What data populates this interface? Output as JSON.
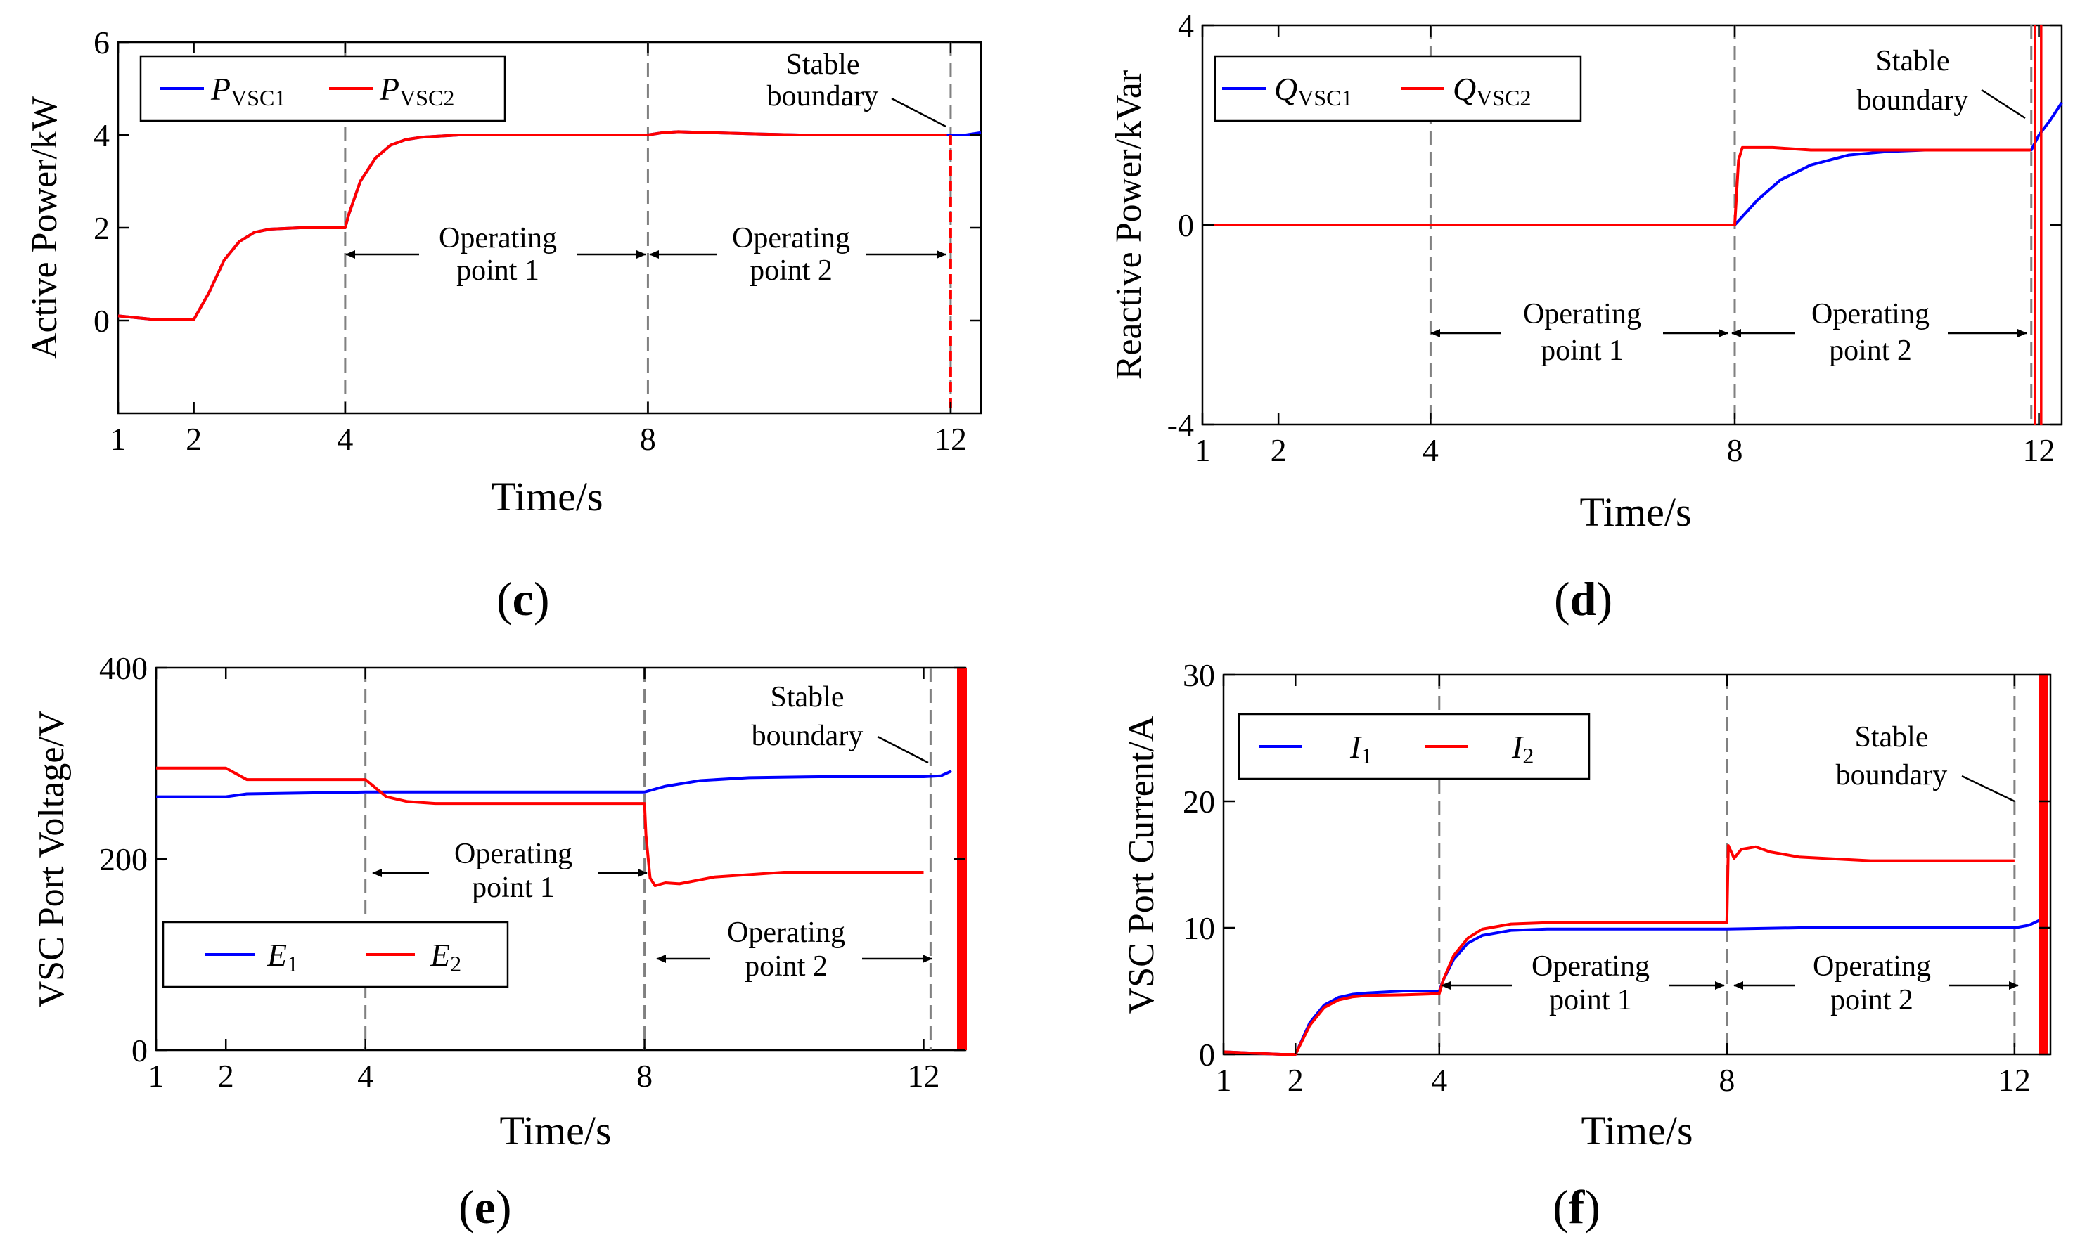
{
  "chart_data": [
    {
      "panel": "(c)",
      "panel_letter": "c",
      "type": "line",
      "ylabel": "Active Power/kW",
      "xlabel": "Time/s",
      "xlim": [
        1,
        12.4
      ],
      "ylim": [
        -2,
        6
      ],
      "x_ticks": [
        "1",
        "2",
        "4",
        "8",
        "12"
      ],
      "x_tick_values": [
        1,
        2,
        4,
        8,
        12
      ],
      "y_ticks": [
        "0",
        "2",
        "4",
        "6"
      ],
      "y_tick_values": [
        0,
        2,
        4,
        6
      ],
      "legend": {
        "placement": "top-left",
        "entries": [
          {
            "main": "P",
            "sub": "VSC1",
            "color": "#0000ff"
          },
          {
            "main": "P",
            "sub": "VSC2",
            "color": "#ff0000"
          }
        ]
      },
      "dashed_lines_x": [
        4,
        8,
        12
      ],
      "annotations": {
        "stable_line1": "Stable",
        "stable_line2": "boundary",
        "op1_line1": "Operating",
        "op1_line2": "point 1",
        "op2_line1": "Operating",
        "op2_line2": "point 2"
      },
      "series": [
        {
          "color": "#0000ff",
          "x": [
            1,
            1.5,
            2,
            2.2,
            2.4,
            2.6,
            2.8,
            3.0,
            3.4,
            4.0,
            4.05,
            4.2,
            4.4,
            4.6,
            4.8,
            5.0,
            5.5,
            6.0,
            8.0,
            8.2,
            8.4,
            8.8,
            9.5,
            10,
            12.0,
            12.2,
            12.4
          ],
          "y": [
            0.1,
            0.02,
            0.02,
            0.6,
            1.3,
            1.7,
            1.9,
            1.97,
            2.0,
            2.0,
            2.3,
            3.0,
            3.5,
            3.78,
            3.9,
            3.95,
            4.0,
            4.0,
            4.0,
            4.05,
            4.07,
            4.05,
            4.02,
            4.0,
            4.0,
            4.0,
            4.05
          ]
        },
        {
          "color": "#ff0000",
          "x": [
            1,
            1.5,
            2,
            2.2,
            2.4,
            2.6,
            2.8,
            3.0,
            3.4,
            4.0,
            4.05,
            4.2,
            4.4,
            4.6,
            4.8,
            5.0,
            5.5,
            6.0,
            8.0,
            8.2,
            8.4,
            8.8,
            9.5,
            10,
            11.95
          ],
          "y": [
            0.1,
            0.02,
            0.02,
            0.6,
            1.3,
            1.7,
            1.9,
            1.97,
            2.0,
            2.0,
            2.3,
            3.0,
            3.5,
            3.78,
            3.9,
            3.95,
            4.0,
            4.0,
            4.0,
            4.05,
            4.07,
            4.05,
            4.02,
            4.0,
            4.0
          ]
        },
        {
          "color": "#ff0000",
          "x": [
            12,
            12
          ],
          "y": [
            4.0,
            -2.0
          ],
          "dash": true
        }
      ]
    },
    {
      "panel": "(d)",
      "panel_letter": "d",
      "type": "line",
      "ylabel": "Reactive Power/kVar",
      "xlabel": "Time/s",
      "xlim": [
        1,
        12.3
      ],
      "ylim": [
        -4,
        4
      ],
      "x_ticks": [
        "1",
        "2",
        "4",
        "8",
        "12"
      ],
      "x_tick_values": [
        1,
        2,
        4,
        8,
        12
      ],
      "y_ticks": [
        "-4",
        "0",
        "4"
      ],
      "y_tick_values": [
        -4,
        0,
        4
      ],
      "legend": {
        "placement": "top-left",
        "entries": [
          {
            "main": "Q",
            "sub": "VSC1",
            "color": "#0000ff"
          },
          {
            "main": "Q",
            "sub": "VSC2",
            "color": "#ff0000"
          }
        ]
      },
      "dashed_lines_x": [
        4,
        8,
        11.9
      ],
      "annotations": {
        "stable_line1": "Stable",
        "stable_line2": "boundary",
        "op1_line1": "Operating",
        "op1_line2": "point 1",
        "op2_line1": "Operating",
        "op2_line2": "point 2"
      },
      "series": [
        {
          "color": "#0000ff",
          "x": [
            1,
            8.0,
            8.3,
            8.6,
            9.0,
            9.5,
            10.0,
            10.5,
            11.0,
            11.9,
            12.0,
            12.15,
            12.3
          ],
          "y": [
            0,
            0,
            0.5,
            0.9,
            1.2,
            1.4,
            1.47,
            1.5,
            1.5,
            1.5,
            1.8,
            2.1,
            2.45
          ]
        },
        {
          "color": "#ff0000",
          "x": [
            1,
            8.0,
            8.05,
            8.1,
            8.5,
            9.0,
            10.0,
            11.9
          ],
          "y": [
            0,
            0,
            1.3,
            1.55,
            1.55,
            1.5,
            1.5,
            1.5
          ]
        },
        {
          "color": "#ff0000",
          "x": [
            11.95,
            11.95
          ],
          "y": [
            4.0,
            -4.0
          ],
          "width": 3.5
        },
        {
          "color": "#ff0000",
          "x": [
            12.03,
            12.03
          ],
          "y": [
            4.0,
            -4.0
          ],
          "width": 3.5
        }
      ]
    },
    {
      "panel": "(e)",
      "panel_letter": "e",
      "type": "line",
      "ylabel": "VSC Port Voltage/V",
      "xlabel": "Time/s",
      "xlim": [
        1,
        12.6
      ],
      "ylim": [
        0,
        400
      ],
      "x_ticks": [
        "1",
        "2",
        "4",
        "8",
        "12"
      ],
      "x_tick_values": [
        1,
        2,
        4,
        8,
        12
      ],
      "y_ticks": [
        "0",
        "200",
        "400"
      ],
      "y_tick_values": [
        0,
        200,
        400
      ],
      "legend": {
        "placement": "bottom-left",
        "entries": [
          {
            "main": "E",
            "sub": "1",
            "color": "#0000ff"
          },
          {
            "main": "E",
            "sub": "2",
            "color": "#ff0000"
          }
        ]
      },
      "dashed_lines_x": [
        4,
        8,
        12.1
      ],
      "annotations": {
        "stable_line1": "Stable",
        "stable_line2": "boundary",
        "op1_line1": "Operating",
        "op1_line2": "point 1",
        "op2_line1": "Operating",
        "op2_line2": "point 2"
      },
      "series": [
        {
          "color": "#0000ff",
          "x": [
            1,
            2.0,
            2.3,
            4.0,
            8.0,
            8.3,
            8.8,
            9.5,
            10.5,
            12.0,
            12.25,
            12.4
          ],
          "y": [
            265,
            265,
            268,
            270,
            270,
            276,
            282,
            285,
            286,
            286,
            287,
            292
          ]
        },
        {
          "color": "#ff0000",
          "x": [
            1,
            2.0,
            2.3,
            4.0,
            4.3,
            4.6,
            5.0,
            8.0,
            8.02,
            8.08,
            8.15,
            8.3,
            8.5,
            9.0,
            10.0,
            12.0
          ],
          "y": [
            295,
            295,
            283,
            283,
            265,
            260,
            258,
            258,
            225,
            180,
            172,
            175,
            174,
            181,
            186,
            186
          ]
        },
        {
          "color": "#ff0000",
          "x": [
            12.55,
            12.55
          ],
          "y": [
            400,
            0
          ],
          "width": 14
        }
      ]
    },
    {
      "panel": "(f)",
      "panel_letter": "f",
      "type": "line",
      "ylabel": "VSC Port Current/A",
      "xlabel": "Time/s",
      "xlim": [
        1,
        12.5
      ],
      "ylim": [
        0,
        30
      ],
      "x_ticks": [
        "1",
        "2",
        "4",
        "8",
        "12"
      ],
      "x_tick_values": [
        1,
        2,
        4,
        8,
        12
      ],
      "y_ticks": [
        "0",
        "10",
        "20",
        "30"
      ],
      "y_tick_values": [
        0,
        10,
        20,
        30
      ],
      "legend": {
        "placement": "top-left",
        "entries": [
          {
            "main": "I",
            "sub": "1",
            "color": "#0000ff"
          },
          {
            "main": "I",
            "sub": "2",
            "color": "#ff0000"
          }
        ]
      },
      "dashed_lines_x": [
        4,
        8,
        12
      ],
      "annotations": {
        "stable_line1": "Stable",
        "stable_line2": "boundary",
        "op1_line1": "Operating",
        "op1_line2": "point 1",
        "op2_line1": "Operating",
        "op2_line2": "point 2"
      },
      "series": [
        {
          "color": "#0000ff",
          "x": [
            1,
            1.8,
            2.0,
            2.2,
            2.4,
            2.6,
            2.8,
            3.0,
            3.5,
            4.0,
            4.05,
            4.2,
            4.4,
            4.6,
            5.0,
            5.5,
            8.0,
            9.0,
            10,
            12.0,
            12.2,
            12.35
          ],
          "y": [
            0.2,
            0,
            0,
            2.5,
            3.9,
            4.5,
            4.75,
            4.85,
            5.0,
            5.0,
            5.8,
            7.5,
            8.8,
            9.4,
            9.8,
            9.9,
            9.9,
            10.0,
            10.0,
            10.0,
            10.2,
            10.6
          ]
        },
        {
          "color": "#ff0000",
          "x": [
            1,
            1.8,
            2.0,
            2.2,
            2.4,
            2.6,
            2.8,
            3.0,
            3.5,
            4.0,
            4.05,
            4.2,
            4.4,
            4.6,
            5.0,
            5.5,
            8.0,
            8.02,
            8.1,
            8.2,
            8.4,
            8.6,
            9.0,
            10.0,
            12.0
          ],
          "y": [
            0.2,
            0,
            0,
            2.3,
            3.7,
            4.3,
            4.55,
            4.65,
            4.7,
            4.8,
            5.8,
            7.8,
            9.2,
            9.9,
            10.3,
            10.4,
            10.4,
            16.5,
            15.5,
            16.2,
            16.4,
            16.0,
            15.6,
            15.3,
            15.3
          ]
        },
        {
          "color": "#ff0000",
          "x": [
            12.4,
            12.4
          ],
          "y": [
            30,
            0
          ],
          "width": 13
        }
      ]
    }
  ]
}
